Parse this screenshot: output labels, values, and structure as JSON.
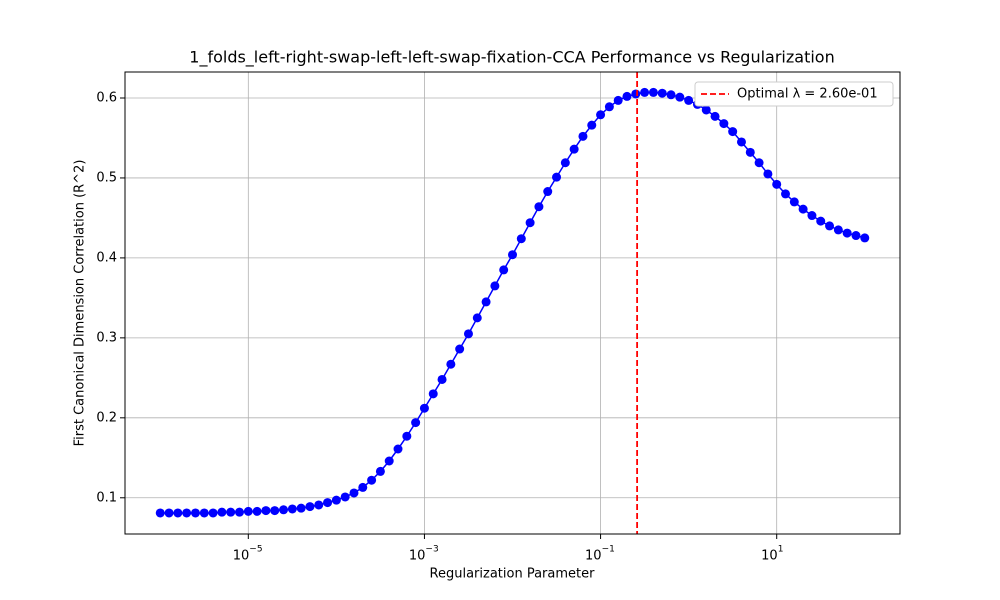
{
  "chart_data": {
    "type": "line",
    "title": "1_folds_left-right-swap-left-left-swap-fixation-CCA Performance vs Regularization",
    "xlabel": "Regularization Parameter",
    "ylabel": "First Canonical Dimension Correlation (R^2)",
    "xscale": "log",
    "grid": true,
    "legend_loc": "upper right",
    "xlim": [
      3.98e-07,
      251.2
    ],
    "ylim": [
      0.0547,
      0.6325
    ],
    "xticks": [
      {
        "value": 1e-05,
        "label": "10",
        "exponent": "−5"
      },
      {
        "value": 0.001,
        "label": "10",
        "exponent": "−3"
      },
      {
        "value": 0.1,
        "label": "10",
        "exponent": "−1"
      },
      {
        "value": 10,
        "label": "10",
        "exponent": "1"
      }
    ],
    "yticks": [
      0.1,
      0.2,
      0.3,
      0.4,
      0.5,
      0.6
    ],
    "x": [
      1e-06,
      1.259e-06,
      1.585e-06,
      1.995e-06,
      2.512e-06,
      3.162e-06,
      3.981e-06,
      5.012e-06,
      6.31e-06,
      7.943e-06,
      1e-05,
      1.259e-05,
      1.585e-05,
      1.995e-05,
      2.512e-05,
      3.162e-05,
      3.981e-05,
      5.012e-05,
      6.31e-05,
      7.943e-05,
      0.0001,
      0.0001259,
      0.0001585,
      0.0001995,
      0.0002512,
      0.0003162,
      0.0003981,
      0.0005012,
      0.000631,
      0.0007943,
      0.001,
      0.001259,
      0.001585,
      0.001995,
      0.002512,
      0.003162,
      0.003981,
      0.005012,
      0.00631,
      0.007943,
      0.01,
      0.01259,
      0.01585,
      0.01995,
      0.02512,
      0.03162,
      0.03981,
      0.05012,
      0.0631,
      0.07943,
      0.1,
      0.1259,
      0.1585,
      0.1995,
      0.2512,
      0.3162,
      0.3981,
      0.5012,
      0.631,
      0.7943,
      1,
      1.259,
      1.585,
      1.995,
      2.512,
      3.162,
      3.981,
      5.012,
      6.31,
      7.943,
      10,
      12.59,
      15.85,
      19.95,
      25.12,
      31.62,
      39.81,
      50.12,
      63.1,
      79.43,
      100
    ],
    "series": [
      {
        "color": "#0000ff",
        "values": [
          0.081,
          0.081,
          0.081,
          0.081,
          0.081,
          0.081,
          0.081,
          0.082,
          0.082,
          0.082,
          0.083,
          0.083,
          0.084,
          0.084,
          0.085,
          0.086,
          0.087,
          0.089,
          0.091,
          0.094,
          0.097,
          0.101,
          0.106,
          0.113,
          0.122,
          0.133,
          0.146,
          0.161,
          0.177,
          0.194,
          0.212,
          0.23,
          0.248,
          0.267,
          0.286,
          0.305,
          0.325,
          0.345,
          0.365,
          0.385,
          0.404,
          0.424,
          0.444,
          0.464,
          0.483,
          0.501,
          0.519,
          0.536,
          0.552,
          0.566,
          0.579,
          0.589,
          0.597,
          0.602,
          0.605,
          0.607,
          0.607,
          0.606,
          0.604,
          0.601,
          0.597,
          0.592,
          0.585,
          0.577,
          0.568,
          0.558,
          0.545,
          0.532,
          0.519,
          0.505,
          0.492,
          0.48,
          0.47,
          0.461,
          0.453,
          0.446,
          0.44,
          0.435,
          0.431,
          0.428,
          0.425
        ]
      }
    ],
    "vline": {
      "x": 0.26,
      "label": "Optimal λ = 2.60e-01",
      "color": "#ff0000"
    }
  }
}
